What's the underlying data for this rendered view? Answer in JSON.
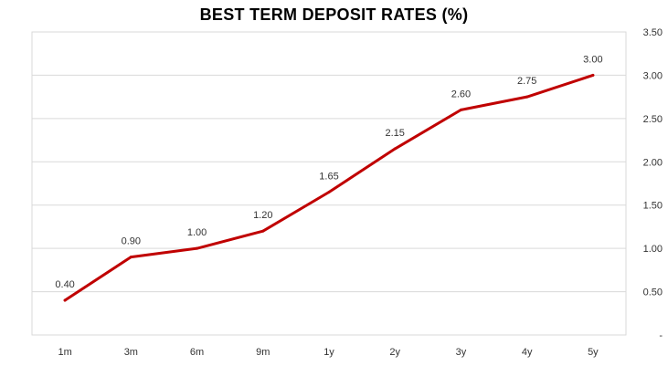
{
  "chart_data": {
    "type": "line",
    "title": "BEST TERM DEPOSIT RATES (%)",
    "categories": [
      "1m",
      "3m",
      "6m",
      "9m",
      "1y",
      "2y",
      "3y",
      "4y",
      "5y"
    ],
    "series": [
      {
        "values": [
          0.4,
          0.9,
          1.0,
          1.2,
          1.65,
          2.15,
          2.6,
          2.75,
          3.0
        ],
        "color": "#c00000"
      }
    ],
    "data_labels": [
      "0.40",
      "0.90",
      "1.00",
      "1.20",
      "1.65",
      "2.15",
      "2.60",
      "2.75",
      "3.00"
    ],
    "y_axis": {
      "position": "right",
      "ylim": [
        0,
        3.5
      ],
      "ticks": [
        0,
        0.5,
        1.0,
        1.5,
        2.0,
        2.5,
        3.0,
        3.5
      ],
      "tick_labels": [
        "-",
        "0.50",
        "1.00",
        "1.50",
        "2.00",
        "2.50",
        "3.00",
        "3.50"
      ]
    },
    "xlabel": "",
    "ylabel": "",
    "grid": true,
    "legend": "none",
    "colors": {
      "line": "#c00000",
      "grid": "#d9d9d9",
      "text": "#333333"
    }
  }
}
